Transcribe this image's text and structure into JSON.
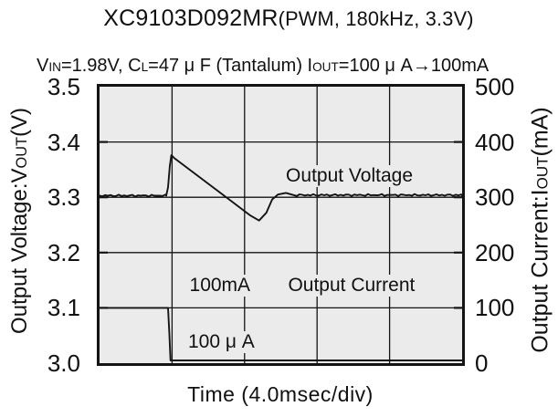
{
  "title_runs": [
    {
      "text": "XC9103D092MR"
    },
    {
      "text": "(PWM, 180kHz, 3.3V)",
      "paren": true
    }
  ],
  "conditions_runs": [
    {
      "text": "V"
    },
    {
      "text": "IN",
      "small": true
    },
    {
      "text": "=1.98V, C"
    },
    {
      "text": "L",
      "small": true
    },
    {
      "text": "=47 μ F (Tantalum) I"
    },
    {
      "text": "OUT",
      "small": true
    },
    {
      "text": "=100 μ A→100mA"
    }
  ],
  "left_axis_title_runs": [
    {
      "text": "Output Voltage:V"
    },
    {
      "text": "OUT",
      "small": true
    },
    {
      "text": "(V)"
    }
  ],
  "right_axis_title_runs": [
    {
      "text": "Output Current:I"
    },
    {
      "text": "OUT",
      "small": true
    },
    {
      "text": "(mA)"
    }
  ],
  "chart_data": {
    "type": "line",
    "title": "XC9103D092MR (PWM, 180kHz, 3.3V)",
    "subtitle": "VIN=1.98V, CL=47μF (Tantalum) IOUT=100μA→100mA",
    "xlabel": "Time (4.0msec/div)",
    "x_divisions": 5,
    "msec_per_div": 4.0,
    "grid": "on",
    "legend": "none",
    "colors": {
      "plot_bg": "#ebebeb",
      "grid": "#141414",
      "trace": "#141414",
      "text": "#111111"
    },
    "left_axis": {
      "label": "Output Voltage:VOUT(V)",
      "min": 3.0,
      "max": 3.5,
      "tick_labels": [
        "3.5",
        "3.4",
        "3.3",
        "3.2",
        "3.1",
        "3.0"
      ]
    },
    "right_axis": {
      "label": "Output Current:IOUT(mA)",
      "min": 0,
      "max": 500,
      "tick_labels": [
        "500",
        "400",
        "300",
        "200",
        "100",
        "0"
      ]
    },
    "series": [
      {
        "name": "Output Voltage",
        "axis": "left",
        "unit": "V",
        "points": [
          [
            0,
            3.303,
            1
          ],
          [
            0.92,
            3.303
          ],
          [
            0.945,
            3.318
          ],
          [
            0.968,
            3.356
          ],
          [
            0.99,
            3.376
          ],
          [
            1.03,
            3.371
          ],
          [
            2.08,
            3.267
          ],
          [
            2.2,
            3.258
          ],
          [
            2.3,
            3.272
          ],
          [
            2.38,
            3.296
          ],
          [
            2.46,
            3.305
          ],
          [
            2.57,
            3.308
          ],
          [
            2.72,
            3.304,
            1
          ],
          [
            5,
            3.303
          ]
        ]
      },
      {
        "name": "Output Current",
        "axis": "right",
        "unit": "mA",
        "points": [
          [
            0,
            100
          ],
          [
            0.945,
            100
          ],
          [
            0.962,
            55
          ],
          [
            0.978,
            0.1
          ],
          [
            5,
            0.1
          ]
        ]
      }
    ],
    "annotations": [
      {
        "text": "Output Voltage"
      },
      {
        "text": "100mA"
      },
      {
        "text": "Output Current"
      },
      {
        "text": "100 μ A"
      }
    ]
  }
}
